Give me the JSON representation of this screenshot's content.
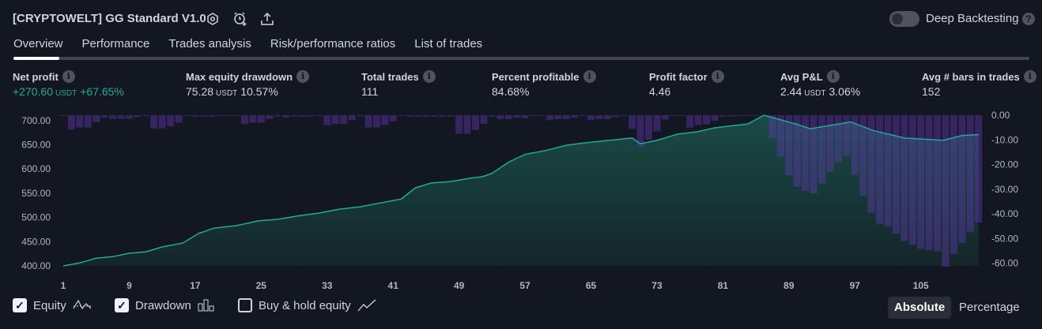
{
  "header": {
    "title": "[CRYPTOWELT] GG Standard V1.0",
    "icons": [
      "settings-icon",
      "add-alert-icon",
      "export-icon"
    ],
    "deep_backtesting_label": "Deep Backtesting",
    "deep_backtesting_on": false,
    "help": "?"
  },
  "tabs": [
    {
      "label": "Overview",
      "active": true
    },
    {
      "label": "Performance"
    },
    {
      "label": "Trades analysis"
    },
    {
      "label": "Risk/performance ratios"
    },
    {
      "label": "List of trades"
    }
  ],
  "metrics": [
    {
      "label": "Net profit",
      "value": "+270.60",
      "unit": "USDT",
      "pct": "+67.65%",
      "positive": true
    },
    {
      "label": "Max equity drawdown",
      "value": "75.28",
      "unit": "USDT",
      "pct": "10.57%"
    },
    {
      "label": "Total trades",
      "value": "111"
    },
    {
      "label": "Percent profitable",
      "value": "84.68%"
    },
    {
      "label": "Profit factor",
      "value": "4.46"
    },
    {
      "label": "Avg P&L",
      "value": "2.44",
      "unit": "USDT",
      "pct": "3.06%"
    },
    {
      "label": "Avg # bars in trades",
      "value": "152"
    }
  ],
  "info_glyph": "i",
  "chart_data": {
    "type": "area+bar",
    "x_ticks": [
      1,
      9,
      17,
      25,
      33,
      41,
      49,
      57,
      65,
      73,
      81,
      89,
      97,
      105
    ],
    "x_range": [
      1,
      112
    ],
    "left_axis": {
      "ticks": [
        "700.00",
        "650.00",
        "600.00",
        "550.00",
        "500.00",
        "450.00",
        "400.00"
      ],
      "range": [
        400,
        711
      ]
    },
    "right_axis": {
      "ticks": [
        "0.00",
        "-10.00",
        "-20.00",
        "-30.00",
        "-40.00",
        "-50.00",
        "-60.00"
      ],
      "range": [
        -61,
        0
      ]
    },
    "equity": [
      [
        1,
        400
      ],
      [
        3,
        406
      ],
      [
        5,
        416
      ],
      [
        7,
        419
      ],
      [
        9,
        426
      ],
      [
        11,
        429
      ],
      [
        13,
        439
      ],
      [
        15.5,
        447
      ],
      [
        17.4,
        467
      ],
      [
        19.3,
        478
      ],
      [
        22,
        483
      ],
      [
        24.7,
        493
      ],
      [
        27,
        496
      ],
      [
        29.8,
        504
      ],
      [
        32,
        509
      ],
      [
        34.5,
        517
      ],
      [
        37,
        522
      ],
      [
        39.5,
        530
      ],
      [
        42,
        538
      ],
      [
        43.7,
        561
      ],
      [
        45.6,
        571
      ],
      [
        48,
        574
      ],
      [
        50.4,
        581
      ],
      [
        51.8,
        584
      ],
      [
        53,
        591
      ],
      [
        55,
        614
      ],
      [
        57,
        630
      ],
      [
        59.5,
        638
      ],
      [
        62,
        649
      ],
      [
        64.3,
        654
      ],
      [
        67.2,
        659
      ],
      [
        70,
        664
      ],
      [
        71,
        652
      ],
      [
        73,
        659
      ],
      [
        75.5,
        672
      ],
      [
        78,
        677
      ],
      [
        80,
        685
      ],
      [
        84,
        693
      ],
      [
        86,
        711
      ],
      [
        90,
        692
      ],
      [
        91.6,
        683
      ],
      [
        94,
        690
      ],
      [
        96.5,
        697
      ],
      [
        99.3,
        679
      ],
      [
        103,
        664
      ],
      [
        107.7,
        659
      ],
      [
        110,
        669
      ],
      [
        112,
        671
      ]
    ],
    "drawdown": [
      -0.3,
      -5.8,
      -5,
      -5,
      -2.8,
      -1,
      -1.5,
      -1.5,
      -1.5,
      -0.8,
      -0.3,
      -5.5,
      -5.3,
      -4.5,
      -3,
      -0.3,
      -0.5,
      -0.5,
      -0.5,
      -0.3,
      -0.3,
      -0.3,
      -3.5,
      -3,
      -3,
      -1.5,
      -0.5,
      -1,
      -0.5,
      -0.5,
      -0.5,
      -0.2,
      -4,
      -3.5,
      -3.5,
      -2,
      -0.5,
      -5,
      -5,
      -4,
      -2.5,
      -0.2,
      -0.5,
      -0.5,
      -0.5,
      -0.5,
      -0.5,
      -0.5,
      -7.5,
      -7.5,
      -6,
      -3.5,
      -0.5,
      -1.5,
      -1.5,
      -1,
      -1.3,
      -0.3,
      -0.3,
      -2,
      -1.6,
      -1.6,
      -1,
      -0.3,
      -2,
      -1.6,
      -1.6,
      -0.8,
      -0.3,
      -5.5,
      -12.8,
      -10,
      -6.6,
      -1.7,
      -0.3,
      -0.3,
      -5,
      -4,
      -3.7,
      -2.3,
      -0.5,
      -0.5,
      -0.3,
      -0.3,
      -0.2,
      0,
      -9.3,
      -16.8,
      -24.3,
      -29,
      -30.7,
      -31.7,
      -27.7,
      -23,
      -19.1,
      -16.6,
      -24.3,
      -32.6,
      -39.6,
      -44.1,
      -45.1,
      -48,
      -51,
      -52.5,
      -54.2,
      -54.7,
      -55.2,
      -61.4,
      -56.3,
      -51.8,
      -47.3,
      -43.5
    ],
    "colors": {
      "equity_line": "#22ab94",
      "drawdown_bar": "#673ab7"
    }
  },
  "legend": [
    {
      "label": "Equity",
      "checked": true,
      "icon": "equity-icon"
    },
    {
      "label": "Drawdown",
      "checked": true,
      "icon": "drawdown-icon"
    },
    {
      "label": "Buy & hold equity",
      "checked": false,
      "icon": "buy-hold-icon"
    }
  ],
  "checkmark": "✓",
  "view_modes": [
    {
      "label": "Absolute",
      "active": true
    },
    {
      "label": "Percentage"
    }
  ]
}
